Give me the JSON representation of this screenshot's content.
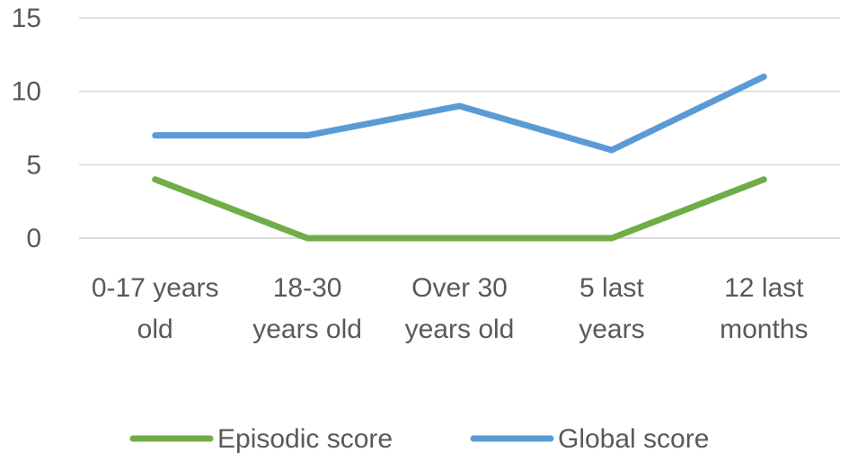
{
  "chart_data": {
    "type": "line",
    "title": "",
    "xlabel": "",
    "ylabel": "",
    "categories": [
      [
        "0-17 years",
        "old"
      ],
      [
        "18-30",
        "years old"
      ],
      [
        "Over 30",
        "years old"
      ],
      [
        "5 last",
        "years"
      ],
      [
        "12 last",
        "months"
      ]
    ],
    "ylim": [
      0,
      15
    ],
    "yticks": [
      "0",
      "5",
      "10",
      "15"
    ],
    "grid": true,
    "legend_position": "bottom",
    "series": [
      {
        "name": "Episodic score",
        "values": [
          4,
          0,
          0,
          0,
          4
        ],
        "color": "#70ad47"
      },
      {
        "name": "Global score",
        "values": [
          7,
          7,
          9,
          6,
          11
        ],
        "color": "#5b9bd5"
      }
    ]
  }
}
